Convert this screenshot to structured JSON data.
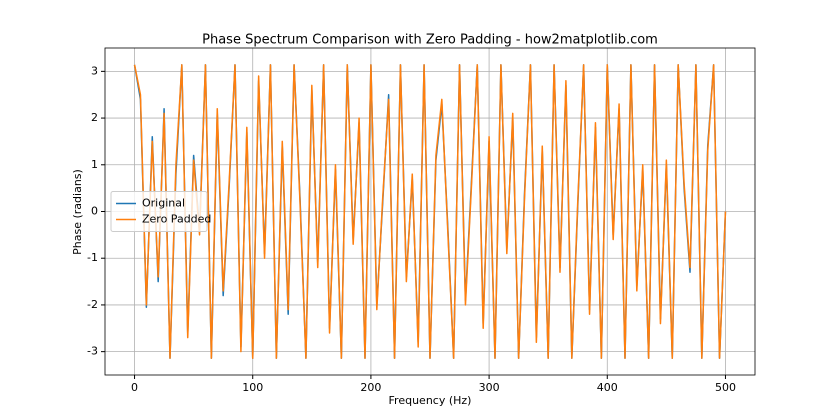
{
  "chart_data": {
    "type": "line",
    "title": "Phase Spectrum Comparison with Zero Padding - how2matplotlib.com",
    "x_label": "Frequency (Hz)",
    "y_label": "Phase (radians)",
    "x": [
      0,
      5,
      10,
      15,
      20,
      25,
      30,
      35,
      40,
      45,
      50,
      55,
      60,
      65,
      70,
      75,
      80,
      85,
      90,
      95,
      100,
      105,
      110,
      115,
      120,
      125,
      130,
      135,
      140,
      145,
      150,
      155,
      160,
      165,
      170,
      175,
      180,
      185,
      190,
      195,
      200,
      205,
      210,
      215,
      220,
      225,
      230,
      235,
      240,
      245,
      250,
      255,
      260,
      265,
      270,
      275,
      280,
      285,
      290,
      295,
      300,
      305,
      310,
      315,
      320,
      325,
      330,
      335,
      340,
      345,
      350,
      355,
      360,
      365,
      370,
      375,
      380,
      385,
      390,
      395,
      400,
      405,
      410,
      415,
      420,
      425,
      430,
      435,
      440,
      445,
      450,
      455,
      460,
      465,
      470,
      475,
      480,
      485,
      490,
      495,
      500
    ],
    "series": [
      {
        "name": "Original",
        "color": "#1f77b4",
        "values": [
          3.14,
          2.4,
          -2.05,
          1.6,
          -1.5,
          2.2,
          -3.14,
          0.8,
          3.14,
          -2.6,
          1.2,
          -0.4,
          3.14,
          -3.14,
          2.1,
          -1.8,
          0.5,
          3.14,
          -2.9,
          1.7,
          -3.14,
          2.8,
          -0.9,
          3.14,
          -3.14,
          1.4,
          -2.2,
          3.14,
          0.3,
          -3.14,
          2.6,
          -1.1,
          3.14,
          -2.5,
          0.9,
          -3.14,
          3.14,
          -0.6,
          1.9,
          -3.14,
          3.14,
          -2.0,
          0.2,
          2.5,
          -3.14,
          3.14,
          -1.4,
          0.7,
          -2.8,
          3.14,
          -3.14,
          1.1,
          2.3,
          -0.3,
          -3.14,
          3.14,
          -1.9,
          0.6,
          3.14,
          -2.4,
          1.5,
          -3.14,
          3.14,
          -0.8,
          2.0,
          -3.14,
          0.4,
          3.14,
          -2.7,
          1.3,
          -3.14,
          3.14,
          -1.2,
          2.7,
          -3.14,
          0.1,
          3.14,
          -2.1,
          1.8,
          -3.14,
          3.14,
          -0.5,
          2.2,
          -3.14,
          3.14,
          -1.6,
          0.9,
          -3.14,
          3.14,
          -2.3,
          1.0,
          -3.14,
          3.14,
          0.5,
          -1.3,
          3.14,
          -3.14,
          1.4,
          3.14,
          -3.14,
          0.0
        ]
      },
      {
        "name": "Zero Padded",
        "color": "#ff7f0e",
        "values": [
          3.14,
          2.5,
          -2.0,
          1.5,
          -1.4,
          2.1,
          -3.14,
          1.0,
          3.14,
          -2.7,
          1.1,
          -0.5,
          3.14,
          -3.14,
          2.2,
          -1.7,
          0.6,
          3.14,
          -3.0,
          1.8,
          -3.14,
          2.9,
          -1.0,
          3.14,
          -3.14,
          1.5,
          -2.1,
          3.14,
          0.2,
          -3.14,
          2.7,
          -1.2,
          3.14,
          -2.6,
          1.0,
          -3.14,
          3.14,
          -0.7,
          2.0,
          -3.14,
          3.14,
          -2.1,
          0.3,
          2.4,
          -3.14,
          3.14,
          -1.5,
          0.8,
          -2.9,
          3.14,
          -3.14,
          1.2,
          2.4,
          -0.4,
          -3.14,
          3.14,
          -2.0,
          0.5,
          3.14,
          -2.5,
          1.6,
          -3.14,
          3.14,
          -0.9,
          2.1,
          -3.14,
          0.3,
          3.14,
          -2.8,
          1.4,
          -3.14,
          3.14,
          -1.3,
          2.8,
          -3.14,
          0.2,
          3.14,
          -2.2,
          1.9,
          -3.14,
          3.14,
          -0.6,
          2.3,
          -3.14,
          3.14,
          -1.7,
          1.0,
          -3.14,
          3.14,
          -2.4,
          1.1,
          -3.14,
          3.14,
          0.6,
          -1.2,
          3.14,
          -3.14,
          1.3,
          3.14,
          -3.14,
          0.0
        ]
      }
    ],
    "xlim": [
      -25,
      525
    ],
    "xticks": [
      0,
      100,
      200,
      300,
      400,
      500
    ],
    "ylim": [
      -3.5,
      3.5
    ],
    "yticks": [
      -3,
      -2,
      -1,
      0,
      1,
      2,
      3
    ],
    "grid": true,
    "legend": "center left"
  }
}
